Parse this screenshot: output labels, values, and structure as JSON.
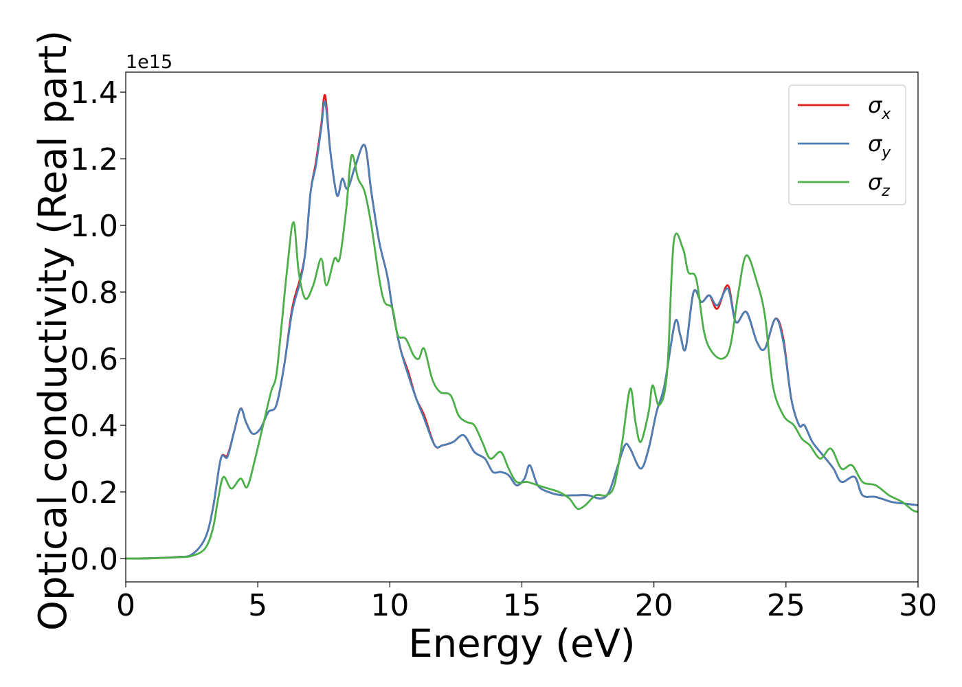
{
  "chart_data": {
    "type": "line",
    "title": "",
    "xlabel": "Energy (eV)",
    "ylabel": "Optical conductivity (Real part)",
    "y_offset_label": "1e15",
    "xlim": [
      0,
      30
    ],
    "ylim": [
      -0.07,
      1.46
    ],
    "x_ticks": [
      0,
      5,
      10,
      15,
      20,
      25,
      30
    ],
    "x_tick_labels": [
      "0",
      "5",
      "10",
      "15",
      "20",
      "25",
      "30"
    ],
    "y_ticks": [
      0.0,
      0.2,
      0.4,
      0.6,
      0.8,
      1.0,
      1.2,
      1.4
    ],
    "y_tick_labels": [
      "0.0",
      "0.2",
      "0.4",
      "0.6",
      "0.8",
      "1.0",
      "1.2",
      "1.4"
    ],
    "grid": false,
    "legend_position": "top-right",
    "series": [
      {
        "name": "σ",
        "subscript": "x",
        "color": "#e41a1c",
        "points": [
          [
            0,
            0
          ],
          [
            1,
            0.001
          ],
          [
            2,
            0.005
          ],
          [
            2.5,
            0.012
          ],
          [
            3,
            0.06
          ],
          [
            3.3,
            0.15
          ],
          [
            3.6,
            0.3
          ],
          [
            3.85,
            0.31
          ],
          [
            4.1,
            0.38
          ],
          [
            4.35,
            0.45
          ],
          [
            4.55,
            0.41
          ],
          [
            4.8,
            0.375
          ],
          [
            5.1,
            0.39
          ],
          [
            5.4,
            0.44
          ],
          [
            5.7,
            0.46
          ],
          [
            6,
            0.58
          ],
          [
            6.3,
            0.75
          ],
          [
            6.6,
            0.84
          ],
          [
            6.8,
            0.92
          ],
          [
            7,
            1.1
          ],
          [
            7.2,
            1.19
          ],
          [
            7.4,
            1.3
          ],
          [
            7.55,
            1.39
          ],
          [
            7.75,
            1.22
          ],
          [
            8,
            1.09
          ],
          [
            8.2,
            1.14
          ],
          [
            8.4,
            1.11
          ],
          [
            8.7,
            1.18
          ],
          [
            9.05,
            1.24
          ],
          [
            9.3,
            1.1
          ],
          [
            9.6,
            0.95
          ],
          [
            9.9,
            0.85
          ],
          [
            10.1,
            0.75
          ],
          [
            10.4,
            0.63
          ],
          [
            10.7,
            0.56
          ],
          [
            11,
            0.48
          ],
          [
            11.3,
            0.43
          ],
          [
            11.7,
            0.34
          ],
          [
            12,
            0.34
          ],
          [
            12.4,
            0.35
          ],
          [
            12.8,
            0.37
          ],
          [
            13.2,
            0.32
          ],
          [
            13.6,
            0.3
          ],
          [
            13.9,
            0.26
          ],
          [
            14.2,
            0.26
          ],
          [
            14.5,
            0.25
          ],
          [
            14.8,
            0.22
          ],
          [
            15.1,
            0.24
          ],
          [
            15.3,
            0.28
          ],
          [
            15.6,
            0.22
          ],
          [
            16,
            0.2
          ],
          [
            16.5,
            0.19
          ],
          [
            17,
            0.19
          ],
          [
            17.5,
            0.19
          ],
          [
            18,
            0.18
          ],
          [
            18.3,
            0.2
          ],
          [
            18.6,
            0.27
          ],
          [
            18.9,
            0.34
          ],
          [
            19.1,
            0.33
          ],
          [
            19.5,
            0.27
          ],
          [
            19.8,
            0.33
          ],
          [
            20.1,
            0.44
          ],
          [
            20.4,
            0.52
          ],
          [
            20.8,
            0.71
          ],
          [
            21,
            0.67
          ],
          [
            21.2,
            0.63
          ],
          [
            21.5,
            0.8
          ],
          [
            21.8,
            0.77
          ],
          [
            22.1,
            0.79
          ],
          [
            22.4,
            0.75
          ],
          [
            22.8,
            0.82
          ],
          [
            23.1,
            0.71
          ],
          [
            23.5,
            0.74
          ],
          [
            23.9,
            0.65
          ],
          [
            24.2,
            0.63
          ],
          [
            24.6,
            0.72
          ],
          [
            24.9,
            0.66
          ],
          [
            25.2,
            0.48
          ],
          [
            25.5,
            0.4
          ],
          [
            25.7,
            0.4
          ],
          [
            26,
            0.35
          ],
          [
            26.4,
            0.31
          ],
          [
            26.8,
            0.27
          ],
          [
            27.1,
            0.23
          ],
          [
            27.6,
            0.245
          ],
          [
            27.9,
            0.19
          ],
          [
            28.4,
            0.185
          ],
          [
            29,
            0.17
          ],
          [
            29.5,
            0.165
          ],
          [
            30,
            0.16
          ]
        ]
      },
      {
        "name": "σ",
        "subscript": "y",
        "color": "#4c7fb5",
        "points": [
          [
            0,
            0
          ],
          [
            1,
            0.001
          ],
          [
            2,
            0.005
          ],
          [
            2.5,
            0.012
          ],
          [
            3,
            0.06
          ],
          [
            3.3,
            0.15
          ],
          [
            3.6,
            0.3
          ],
          [
            3.85,
            0.305
          ],
          [
            4.1,
            0.38
          ],
          [
            4.35,
            0.45
          ],
          [
            4.55,
            0.41
          ],
          [
            4.8,
            0.375
          ],
          [
            5.1,
            0.39
          ],
          [
            5.4,
            0.44
          ],
          [
            5.7,
            0.46
          ],
          [
            6,
            0.58
          ],
          [
            6.3,
            0.74
          ],
          [
            6.6,
            0.83
          ],
          [
            6.8,
            0.92
          ],
          [
            7,
            1.1
          ],
          [
            7.2,
            1.18
          ],
          [
            7.4,
            1.29
          ],
          [
            7.55,
            1.37
          ],
          [
            7.75,
            1.22
          ],
          [
            8,
            1.09
          ],
          [
            8.2,
            1.14
          ],
          [
            8.4,
            1.11
          ],
          [
            8.7,
            1.18
          ],
          [
            9.05,
            1.24
          ],
          [
            9.3,
            1.1
          ],
          [
            9.6,
            0.95
          ],
          [
            9.9,
            0.85
          ],
          [
            10.1,
            0.75
          ],
          [
            10.4,
            0.63
          ],
          [
            10.7,
            0.55
          ],
          [
            11,
            0.48
          ],
          [
            11.3,
            0.42
          ],
          [
            11.7,
            0.34
          ],
          [
            12,
            0.34
          ],
          [
            12.4,
            0.35
          ],
          [
            12.8,
            0.37
          ],
          [
            13.2,
            0.32
          ],
          [
            13.6,
            0.3
          ],
          [
            13.9,
            0.26
          ],
          [
            14.2,
            0.26
          ],
          [
            14.5,
            0.25
          ],
          [
            14.8,
            0.22
          ],
          [
            15.1,
            0.24
          ],
          [
            15.3,
            0.28
          ],
          [
            15.6,
            0.22
          ],
          [
            16,
            0.2
          ],
          [
            16.5,
            0.19
          ],
          [
            17,
            0.19
          ],
          [
            17.5,
            0.19
          ],
          [
            18,
            0.18
          ],
          [
            18.3,
            0.2
          ],
          [
            18.6,
            0.27
          ],
          [
            18.9,
            0.34
          ],
          [
            19.1,
            0.33
          ],
          [
            19.5,
            0.27
          ],
          [
            19.8,
            0.33
          ],
          [
            20.1,
            0.44
          ],
          [
            20.4,
            0.52
          ],
          [
            20.8,
            0.71
          ],
          [
            21,
            0.67
          ],
          [
            21.2,
            0.63
          ],
          [
            21.5,
            0.8
          ],
          [
            21.8,
            0.77
          ],
          [
            22.1,
            0.79
          ],
          [
            22.4,
            0.76
          ],
          [
            22.8,
            0.81
          ],
          [
            23.1,
            0.71
          ],
          [
            23.5,
            0.74
          ],
          [
            23.9,
            0.65
          ],
          [
            24.2,
            0.63
          ],
          [
            24.6,
            0.72
          ],
          [
            24.9,
            0.65
          ],
          [
            25.2,
            0.48
          ],
          [
            25.5,
            0.4
          ],
          [
            25.7,
            0.4
          ],
          [
            26,
            0.35
          ],
          [
            26.4,
            0.31
          ],
          [
            26.8,
            0.27
          ],
          [
            27.1,
            0.23
          ],
          [
            27.6,
            0.245
          ],
          [
            27.9,
            0.19
          ],
          [
            28.4,
            0.185
          ],
          [
            29,
            0.17
          ],
          [
            29.5,
            0.165
          ],
          [
            30,
            0.16
          ]
        ]
      },
      {
        "name": "σ",
        "subscript": "z",
        "color": "#4daf4a",
        "points": [
          [
            0,
            0
          ],
          [
            1,
            0.001
          ],
          [
            2,
            0.004
          ],
          [
            2.5,
            0.008
          ],
          [
            3,
            0.03
          ],
          [
            3.3,
            0.09
          ],
          [
            3.5,
            0.18
          ],
          [
            3.7,
            0.245
          ],
          [
            4,
            0.21
          ],
          [
            4.35,
            0.24
          ],
          [
            4.6,
            0.215
          ],
          [
            4.9,
            0.3
          ],
          [
            5.2,
            0.4
          ],
          [
            5.5,
            0.5
          ],
          [
            5.7,
            0.55
          ],
          [
            5.9,
            0.7
          ],
          [
            6.1,
            0.86
          ],
          [
            6.35,
            1.01
          ],
          [
            6.55,
            0.86
          ],
          [
            6.8,
            0.78
          ],
          [
            7.1,
            0.82
          ],
          [
            7.4,
            0.9
          ],
          [
            7.6,
            0.82
          ],
          [
            7.9,
            0.9
          ],
          [
            8.1,
            0.9
          ],
          [
            8.35,
            1.05
          ],
          [
            8.55,
            1.21
          ],
          [
            8.8,
            1.14
          ],
          [
            9.05,
            1.1
          ],
          [
            9.3,
            1.0
          ],
          [
            9.6,
            0.84
          ],
          [
            9.8,
            0.77
          ],
          [
            10.1,
            0.75
          ],
          [
            10.3,
            0.67
          ],
          [
            10.6,
            0.66
          ],
          [
            10.9,
            0.61
          ],
          [
            11.1,
            0.6
          ],
          [
            11.3,
            0.63
          ],
          [
            11.6,
            0.54
          ],
          [
            11.9,
            0.5
          ],
          [
            12.3,
            0.49
          ],
          [
            12.6,
            0.43
          ],
          [
            12.9,
            0.41
          ],
          [
            13.2,
            0.4
          ],
          [
            13.5,
            0.35
          ],
          [
            13.8,
            0.3
          ],
          [
            14.2,
            0.32
          ],
          [
            14.5,
            0.27
          ],
          [
            14.8,
            0.23
          ],
          [
            15.2,
            0.23
          ],
          [
            15.6,
            0.22
          ],
          [
            16,
            0.21
          ],
          [
            16.4,
            0.2
          ],
          [
            16.8,
            0.18
          ],
          [
            17.1,
            0.15
          ],
          [
            17.4,
            0.16
          ],
          [
            17.8,
            0.19
          ],
          [
            18.2,
            0.19
          ],
          [
            18.5,
            0.22
          ],
          [
            18.8,
            0.35
          ],
          [
            19.1,
            0.51
          ],
          [
            19.3,
            0.41
          ],
          [
            19.5,
            0.35
          ],
          [
            19.8,
            0.44
          ],
          [
            19.95,
            0.52
          ],
          [
            20.2,
            0.46
          ],
          [
            20.5,
            0.56
          ],
          [
            20.75,
            0.95
          ],
          [
            21.1,
            0.93
          ],
          [
            21.3,
            0.86
          ],
          [
            21.6,
            0.84
          ],
          [
            21.9,
            0.68
          ],
          [
            22.2,
            0.62
          ],
          [
            22.6,
            0.6
          ],
          [
            22.9,
            0.64
          ],
          [
            23.2,
            0.8
          ],
          [
            23.5,
            0.91
          ],
          [
            23.9,
            0.83
          ],
          [
            24.2,
            0.73
          ],
          [
            24.5,
            0.52
          ],
          [
            24.9,
            0.43
          ],
          [
            25.3,
            0.4
          ],
          [
            25.6,
            0.36
          ],
          [
            25.9,
            0.34
          ],
          [
            26.3,
            0.3
          ],
          [
            26.7,
            0.33
          ],
          [
            27.1,
            0.27
          ],
          [
            27.5,
            0.28
          ],
          [
            27.9,
            0.23
          ],
          [
            28.4,
            0.22
          ],
          [
            28.9,
            0.19
          ],
          [
            29.4,
            0.17
          ],
          [
            29.8,
            0.145
          ],
          [
            30,
            0.14
          ]
        ]
      }
    ]
  }
}
